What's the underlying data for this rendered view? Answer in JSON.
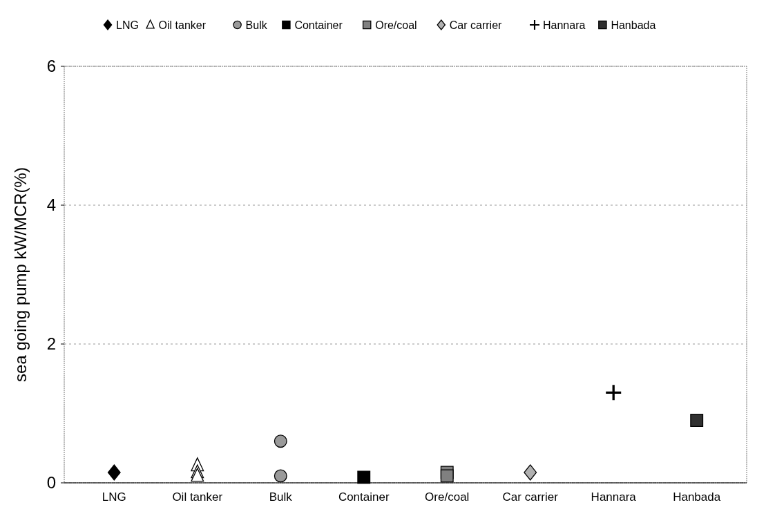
{
  "chart_data": {
    "type": "scatter",
    "ylabel": "sea going pump kW/MCR(%)",
    "categories": [
      "LNG",
      "Oil tanker",
      "Bulk",
      "Container",
      "Ore/coal",
      "Car carrier",
      "Hannara",
      "Hanbada"
    ],
    "ylim": [
      0,
      6
    ],
    "yticks": [
      0,
      2,
      4,
      6
    ],
    "grid": "y",
    "legend": "top",
    "series": [
      {
        "name": "LNG",
        "color": "#000000",
        "marker": "diamond",
        "x": [
          "LNG"
        ],
        "values": [
          0.15
        ]
      },
      {
        "name": "Oil tanker",
        "color": "#ffffff",
        "marker": "triangle",
        "x": [
          "Oil tanker",
          "Oil tanker",
          "Oil tanker"
        ],
        "values": [
          0.25,
          0.15,
          0.1
        ]
      },
      {
        "name": "Bulk",
        "color": "#9a9a9a",
        "marker": "circle",
        "x": [
          "Bulk",
          "Bulk"
        ],
        "values": [
          0.6,
          0.1
        ]
      },
      {
        "name": "Container",
        "color": "#000000",
        "marker": "square",
        "x": [
          "Container"
        ],
        "values": [
          0.08
        ]
      },
      {
        "name": "Ore/coal",
        "color": "#808080",
        "marker": "square",
        "x": [
          "Ore/coal",
          "Ore/coal"
        ],
        "values": [
          0.15,
          0.1
        ]
      },
      {
        "name": "Car carrier",
        "color": "#b0b0b0",
        "marker": "diamond",
        "x": [
          "Car carrier"
        ],
        "values": [
          0.15
        ]
      },
      {
        "name": "Hannara",
        "color": "#000000",
        "marker": "cross",
        "x": [
          "Hannara"
        ],
        "values": [
          1.3
        ]
      },
      {
        "name": "Hanbada",
        "color": "#303030",
        "marker": "square",
        "x": [
          "Hanbada"
        ],
        "values": [
          0.9
        ]
      }
    ]
  }
}
